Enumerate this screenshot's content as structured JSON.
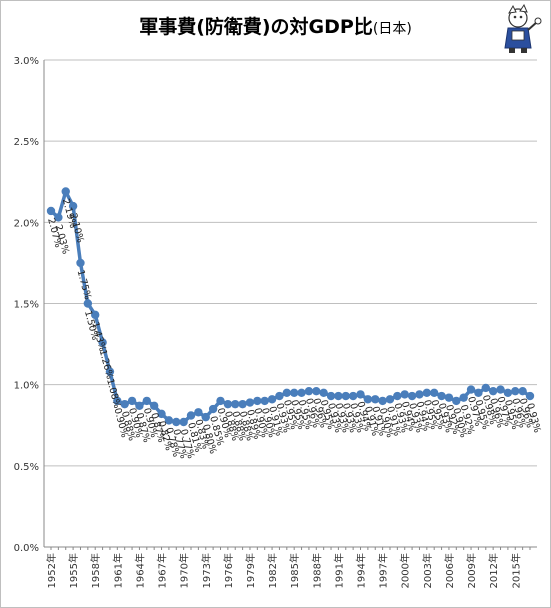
{
  "title": "軍事費(防衛費)の対GDP比",
  "title_suffix": "(日本)",
  "chart_data": {
    "type": "line",
    "title": "軍事費(防衛費)の対GDP比(日本)",
    "xlabel": "",
    "ylabel": "",
    "ylim": [
      0,
      3.0
    ],
    "yticks": [
      "0.0%",
      "0.5%",
      "1.0%",
      "1.5%",
      "2.0%",
      "2.5%",
      "3.0%"
    ],
    "xticks": [
      "1952年",
      "1955年",
      "1958年",
      "1961年",
      "1964年",
      "1967年",
      "1970年",
      "1973年",
      "1976年",
      "1979年",
      "1982年",
      "1985年",
      "1988年",
      "1991年",
      "1994年",
      "1997年",
      "2000年",
      "2003年",
      "2006年",
      "2009年",
      "2012年",
      "2015年"
    ],
    "grid": true,
    "color": "#4a7ebb",
    "series": [
      {
        "x": [
          1952,
          1953,
          1954,
          1955,
          1956,
          1957,
          1958,
          1959,
          1960,
          1961,
          1962,
          1963,
          1964,
          1965,
          1966,
          1967,
          1968,
          1969,
          1970,
          1971,
          1972,
          1973,
          1974,
          1975,
          1976,
          1977,
          1978,
          1979,
          1980,
          1981,
          1982,
          1983,
          1984,
          1985,
          1986,
          1987,
          1988,
          1989,
          1990,
          1991,
          1992,
          1993,
          1994,
          1995,
          1996,
          1997,
          1998,
          1999,
          2000,
          2001,
          2002,
          2003,
          2004,
          2005,
          2006,
          2007,
          2008,
          2009,
          2010,
          2011,
          2012,
          2013,
          2014,
          2015,
          2016,
          2017
        ],
        "values": [
          2.07,
          2.03,
          2.19,
          2.1,
          1.75,
          1.5,
          1.43,
          1.26,
          1.08,
          0.9,
          0.88,
          0.9,
          0.87,
          0.9,
          0.87,
          0.82,
          0.78,
          0.77,
          0.77,
          0.81,
          0.83,
          0.8,
          0.85,
          0.9,
          0.88,
          0.88,
          0.88,
          0.89,
          0.9,
          0.9,
          0.91,
          0.93,
          0.95,
          0.95,
          0.95,
          0.96,
          0.96,
          0.95,
          0.93,
          0.93,
          0.93,
          0.93,
          0.94,
          0.91,
          0.91,
          0.9,
          0.91,
          0.93,
          0.94,
          0.93,
          0.94,
          0.95,
          0.95,
          0.93,
          0.92,
          0.9,
          0.92,
          0.97,
          0.95,
          0.98,
          0.96,
          0.97,
          0.95,
          0.96,
          0.96,
          0.93
        ],
        "labels": [
          "2.07%",
          "2.03%",
          "2.19%",
          "2.10%",
          "1.75%",
          "1.50%",
          "1.43%",
          "1.26%",
          "1.08%",
          "0.90%",
          "0.88%",
          "0.90%",
          "0.87%",
          "0.90%",
          "0.87%",
          "0.82%",
          "0.78%",
          "0.77%",
          "0.77%",
          "0.81%",
          "0.83%",
          "0.80%",
          "0.85%",
          "0.90%",
          "0.88%",
          "0.88%",
          "0.88%",
          "0.89%",
          "0.90%",
          "0.90%",
          "0.91%",
          "0.93%",
          "0.95%",
          "0.95%",
          "0.95%",
          "0.96%",
          "0.96%",
          "0.95%",
          "0.93%",
          "0.93%",
          "0.93%",
          "0.93%",
          "0.94%",
          "0.91%",
          "0.91%",
          "0.90%",
          "0.91%",
          "0.93%",
          "0.94%",
          "0.93%",
          "0.94%",
          "0.95%",
          "0.95%",
          "0.93%",
          "0.92%",
          "0.90%",
          "0.92%",
          "0.97%",
          "0.95%",
          "0.98%",
          "0.96%",
          "0.97%",
          "0.95%",
          "0.96%",
          "0.96%",
          "0.93%"
        ]
      }
    ]
  }
}
